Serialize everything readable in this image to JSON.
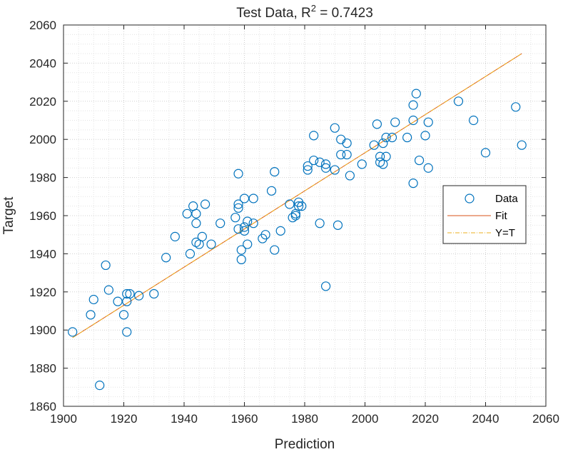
{
  "chart_data": {
    "type": "scatter",
    "title": "Test Data, R",
    "title_sup": "2",
    "title_value": " = 0.7423",
    "xlabel": "Prediction",
    "ylabel": "Target",
    "xlim": [
      1900,
      2060
    ],
    "ylim": [
      1860,
      2060
    ],
    "xticks": [
      "1900",
      "1920",
      "1940",
      "1960",
      "1980",
      "2000",
      "2020",
      "2040",
      "2060"
    ],
    "yticks": [
      "1860",
      "1880",
      "1900",
      "1920",
      "1940",
      "1960",
      "1980",
      "2000",
      "2020",
      "2040",
      "2060"
    ],
    "grid": "dotted major and minor",
    "legend_position": "right",
    "series": [
      {
        "name": "Data",
        "kind": "markers",
        "color": "#0072BD",
        "points": [
          [
            1903,
            1899
          ],
          [
            1909,
            1908
          ],
          [
            1910,
            1916
          ],
          [
            1912,
            1871
          ],
          [
            1914,
            1934
          ],
          [
            1915,
            1921
          ],
          [
            1918,
            1915
          ],
          [
            1920,
            1908
          ],
          [
            1921,
            1919
          ],
          [
            1921,
            1915
          ],
          [
            1921,
            1899
          ],
          [
            1922,
            1919
          ],
          [
            1925,
            1918
          ],
          [
            1930,
            1919
          ],
          [
            1934,
            1938
          ],
          [
            1937,
            1949
          ],
          [
            1941,
            1961
          ],
          [
            1942,
            1940
          ],
          [
            1943,
            1965
          ],
          [
            1944,
            1946
          ],
          [
            1944,
            1956
          ],
          [
            1944,
            1961
          ],
          [
            1945,
            1945
          ],
          [
            1946,
            1949
          ],
          [
            1947,
            1966
          ],
          [
            1949,
            1945
          ],
          [
            1952,
            1956
          ],
          [
            1957,
            1959
          ],
          [
            1958,
            1953
          ],
          [
            1958,
            1964
          ],
          [
            1958,
            1966
          ],
          [
            1959,
            1942
          ],
          [
            1959,
            1937
          ],
          [
            1958,
            1982
          ],
          [
            1960,
            1954
          ],
          [
            1960,
            1952
          ],
          [
            1960,
            1969
          ],
          [
            1961,
            1957
          ],
          [
            1961,
            1945
          ],
          [
            1963,
            1969
          ],
          [
            1963,
            1956
          ],
          [
            1966,
            1948
          ],
          [
            1967,
            1950
          ],
          [
            1969,
            1973
          ],
          [
            1970,
            1983
          ],
          [
            1970,
            1942
          ],
          [
            1972,
            1952
          ],
          [
            1975,
            1966
          ],
          [
            1976,
            1959
          ],
          [
            1977,
            1961
          ],
          [
            1977,
            1960
          ],
          [
            1978,
            1967
          ],
          [
            1978,
            1965
          ],
          [
            1979,
            1965
          ],
          [
            1981,
            1984
          ],
          [
            1981,
            1986
          ],
          [
            1983,
            1989
          ],
          [
            1983,
            2002
          ],
          [
            1985,
            1988
          ],
          [
            1985,
            1956
          ],
          [
            1987,
            1985
          ],
          [
            1987,
            1987
          ],
          [
            1987,
            1923
          ],
          [
            1990,
            2006
          ],
          [
            1990,
            1984
          ],
          [
            1991,
            1955
          ],
          [
            1992,
            1992
          ],
          [
            1992,
            2000
          ],
          [
            1994,
            1992
          ],
          [
            1994,
            1998
          ],
          [
            1995,
            1981
          ],
          [
            1999,
            1987
          ],
          [
            2003,
            1997
          ],
          [
            2004,
            2008
          ],
          [
            2005,
            1988
          ],
          [
            2005,
            1991
          ],
          [
            2006,
            1987
          ],
          [
            2006,
            1998
          ],
          [
            2007,
            2001
          ],
          [
            2007,
            1991
          ],
          [
            2009,
            2001
          ],
          [
            2010,
            2009
          ],
          [
            2014,
            2001
          ],
          [
            2016,
            1977
          ],
          [
            2016,
            2018
          ],
          [
            2016,
            2010
          ],
          [
            2017,
            2024
          ],
          [
            2018,
            1989
          ],
          [
            2020,
            2002
          ],
          [
            2021,
            2009
          ],
          [
            2021,
            1985
          ],
          [
            2031,
            2020
          ],
          [
            2036,
            2010
          ],
          [
            2040,
            1993
          ],
          [
            2050,
            2017
          ],
          [
            2052,
            1997
          ]
        ]
      },
      {
        "name": "Fit",
        "kind": "line",
        "color": "#D95319",
        "style": "solid",
        "points": [
          [
            1903,
            1896
          ],
          [
            2052,
            2045
          ]
        ]
      },
      {
        "name": "Y=T",
        "kind": "line",
        "color": "#EDB120",
        "style": "dashdot",
        "points": [
          [
            1903,
            1896
          ],
          [
            2052,
            2045
          ]
        ]
      }
    ]
  }
}
